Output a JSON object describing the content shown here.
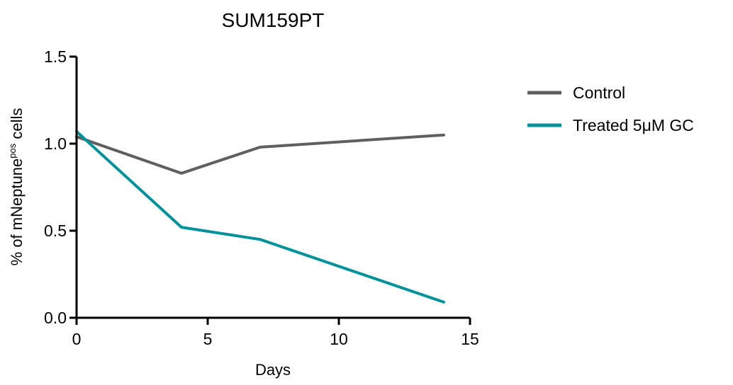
{
  "chart_data": {
    "type": "line",
    "title": "SUM159PT",
    "xlabel": "Days",
    "ylabel": {
      "prefix": "% of mNeptune",
      "superscript": "pos",
      "suffix": " cells"
    },
    "xlim": [
      0,
      15
    ],
    "ylim": [
      0.0,
      1.5
    ],
    "xticks": [
      "0",
      "5",
      "10",
      "15"
    ],
    "yticks": [
      "0.0",
      "0.5",
      "1.0",
      "1.5"
    ],
    "grid": false,
    "legend_position": "right",
    "series": [
      {
        "name": "Control",
        "color": "#5f5f5f",
        "x": [
          0,
          4,
          7,
          14
        ],
        "y": [
          1.04,
          0.83,
          0.98,
          1.05
        ]
      },
      {
        "name": "Treated 5μM GC",
        "color": "#00929a",
        "x": [
          0,
          4,
          7,
          14
        ],
        "y": [
          1.07,
          0.52,
          0.45,
          0.09
        ]
      }
    ]
  }
}
